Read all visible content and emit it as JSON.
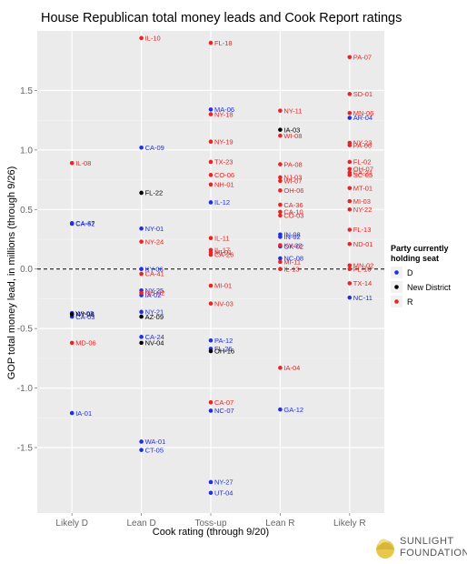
{
  "chart_data": {
    "type": "scatter",
    "title": "House Republican total money leads and Cook Report ratings",
    "xlabel": "Cook rating (through 9/20)",
    "ylabel": "GOP total money lead, in millions (through 9/26)",
    "categories": [
      "Likely D",
      "Lean D",
      "Toss-up",
      "Lean R",
      "Likely R"
    ],
    "ylim": [
      -2.05,
      2.0
    ],
    "yticks": [
      "-1.5",
      "-1.0",
      "-0.5",
      "0.0",
      "0.5",
      "1.0",
      "1.5"
    ],
    "ytick_values": [
      -1.5,
      -1.0,
      -0.5,
      0.0,
      0.5,
      1.0,
      1.5
    ],
    "reference_line": 0.0,
    "legend": {
      "title_line1": "Party currently",
      "title_line2": "holding seat",
      "placement": "right",
      "entries": [
        {
          "label": "D",
          "color": "#1f2fe6"
        },
        {
          "label": "New District",
          "color": "#000000"
        },
        {
          "label": "R",
          "color": "#ee2222"
        }
      ]
    },
    "series": [
      {
        "name": "D",
        "color": "#1f2fe6",
        "points": [
          {
            "cat": "Likely D",
            "y": 0.385,
            "label": "CA-47"
          },
          {
            "cat": "Likely D",
            "y": 0.38,
            "label": "CA-52"
          },
          {
            "cat": "Likely D",
            "y": -0.37,
            "label": "WI-03"
          },
          {
            "cat": "Likely D",
            "y": -0.4,
            "label": "CA-03"
          },
          {
            "cat": "Likely D",
            "y": -1.21,
            "label": "IA-01"
          },
          {
            "cat": "Lean D",
            "y": 1.02,
            "label": "CA-09"
          },
          {
            "cat": "Lean D",
            "y": 0.34,
            "label": "NY-01"
          },
          {
            "cat": "Lean D",
            "y": 0.0,
            "label": "KY-06"
          },
          {
            "cat": "Lean D",
            "y": -0.18,
            "label": "NY-25"
          },
          {
            "cat": "Lean D",
            "y": -0.22,
            "label": "IA-02"
          },
          {
            "cat": "Lean D",
            "y": -0.36,
            "label": "NY-21"
          },
          {
            "cat": "Lean D",
            "y": -0.57,
            "label": "CA-24"
          },
          {
            "cat": "Lean D",
            "y": -1.45,
            "label": "WA-01"
          },
          {
            "cat": "Lean D",
            "y": -1.52,
            "label": "CT-05"
          },
          {
            "cat": "Toss-up",
            "y": 1.34,
            "label": "MA-06"
          },
          {
            "cat": "Toss-up",
            "y": 0.56,
            "label": "IL-12"
          },
          {
            "cat": "Toss-up",
            "y": -0.6,
            "label": "PA-12"
          },
          {
            "cat": "Toss-up",
            "y": -0.67,
            "label": "FL-26"
          },
          {
            "cat": "Toss-up",
            "y": -1.19,
            "label": "NC-07"
          },
          {
            "cat": "Toss-up",
            "y": -1.79,
            "label": "NY-27"
          },
          {
            "cat": "Toss-up",
            "y": -1.88,
            "label": "UT-04"
          },
          {
            "cat": "Lean R",
            "y": 0.29,
            "label": "IN-08"
          },
          {
            "cat": "Lean R",
            "y": 0.27,
            "label": "IN-02"
          },
          {
            "cat": "Lean R",
            "y": 0.19,
            "label": "OK-02"
          },
          {
            "cat": "Lean R",
            "y": 0.09,
            "label": "NC-08"
          },
          {
            "cat": "Lean R",
            "y": -1.18,
            "label": "GA-12"
          },
          {
            "cat": "Likely R",
            "y": 1.27,
            "label": "AR-04"
          },
          {
            "cat": "Likely R",
            "y": -0.24,
            "label": "NC-11"
          }
        ]
      },
      {
        "name": "New District",
        "color": "#000000",
        "points": [
          {
            "cat": "Likely D",
            "y": -0.38,
            "label": "NY-08"
          },
          {
            "cat": "Lean D",
            "y": 0.64,
            "label": "FL-22"
          },
          {
            "cat": "Lean D",
            "y": -0.4,
            "label": "AZ-09"
          },
          {
            "cat": "Lean D",
            "y": -0.62,
            "label": "NV-04"
          },
          {
            "cat": "Toss-up",
            "y": -0.69,
            "label": "OH-16"
          },
          {
            "cat": "Lean R",
            "y": 1.17,
            "label": "IA-03"
          }
        ]
      },
      {
        "name": "R",
        "color": "#ee2222",
        "points": [
          {
            "cat": "Likely D",
            "y": 0.89,
            "label": "IL-08"
          },
          {
            "cat": "Likely D",
            "y": -0.62,
            "label": "MD-06"
          },
          {
            "cat": "Lean D",
            "y": 1.94,
            "label": "IL-10"
          },
          {
            "cat": "Lean D",
            "y": 0.23,
            "label": "NY-24"
          },
          {
            "cat": "Lean D",
            "y": -0.04,
            "label": "CA-41"
          },
          {
            "cat": "Lean D",
            "y": -0.2,
            "label": "NH-02"
          },
          {
            "cat": "Toss-up",
            "y": 1.9,
            "label": "FL-18"
          },
          {
            "cat": "Toss-up",
            "y": 1.3,
            "label": "NY-18"
          },
          {
            "cat": "Toss-up",
            "y": 1.07,
            "label": "NY-19"
          },
          {
            "cat": "Toss-up",
            "y": 0.9,
            "label": "TX-23"
          },
          {
            "cat": "Toss-up",
            "y": 0.79,
            "label": "CO-06"
          },
          {
            "cat": "Toss-up",
            "y": 0.71,
            "label": "NH-01"
          },
          {
            "cat": "Toss-up",
            "y": 0.26,
            "label": "IL-11"
          },
          {
            "cat": "Toss-up",
            "y": 0.16,
            "label": "IL-17"
          },
          {
            "cat": "Toss-up",
            "y": 0.14,
            "label": "MI-01"
          },
          {
            "cat": "Toss-up",
            "y": 0.12,
            "label": "CA-26"
          },
          {
            "cat": "Toss-up",
            "y": -0.14,
            "label": "MI-01"
          },
          {
            "cat": "Toss-up",
            "y": -0.29,
            "label": "NV-03"
          },
          {
            "cat": "Toss-up",
            "y": -1.12,
            "label": "CA-07"
          },
          {
            "cat": "Lean R",
            "y": 1.33,
            "label": "NY-11"
          },
          {
            "cat": "Lean R",
            "y": 1.12,
            "label": "WI-08"
          },
          {
            "cat": "Lean R",
            "y": 0.88,
            "label": "PA-08"
          },
          {
            "cat": "Lean R",
            "y": 0.77,
            "label": "NJ-03"
          },
          {
            "cat": "Lean R",
            "y": 0.74,
            "label": "WI-07"
          },
          {
            "cat": "Lean R",
            "y": 0.66,
            "label": "OH-06"
          },
          {
            "cat": "Lean R",
            "y": 0.54,
            "label": "CA-36"
          },
          {
            "cat": "Lean R",
            "y": 0.48,
            "label": "CA-10"
          },
          {
            "cat": "Lean R",
            "y": 0.45,
            "label": "CO-03"
          },
          {
            "cat": "Lean R",
            "y": 0.2,
            "label": "KY-02"
          },
          {
            "cat": "Lean R",
            "y": 0.06,
            "label": "MI-11"
          },
          {
            "cat": "Lean R",
            "y": 0.0,
            "label": "IL-13"
          },
          {
            "cat": "Lean R",
            "y": -0.83,
            "label": "IA-04"
          },
          {
            "cat": "Likely R",
            "y": 1.78,
            "label": "PA-07"
          },
          {
            "cat": "Likely R",
            "y": 1.47,
            "label": "SD-01"
          },
          {
            "cat": "Likely R",
            "y": 1.31,
            "label": "MN-06"
          },
          {
            "cat": "Likely R",
            "y": 1.06,
            "label": "NY-23"
          },
          {
            "cat": "Likely R",
            "y": 1.04,
            "label": "PA-06"
          },
          {
            "cat": "Likely R",
            "y": 0.9,
            "label": "FL-02"
          },
          {
            "cat": "Likely R",
            "y": 0.84,
            "label": "OH-07"
          },
          {
            "cat": "Likely R",
            "y": 0.81,
            "label": "CA-21"
          },
          {
            "cat": "Likely R",
            "y": 0.79,
            "label": "SC-05"
          },
          {
            "cat": "Likely R",
            "y": 0.68,
            "label": "MT-01"
          },
          {
            "cat": "Likely R",
            "y": 0.57,
            "label": "MI-03"
          },
          {
            "cat": "Likely R",
            "y": 0.5,
            "label": "NY-22"
          },
          {
            "cat": "Likely R",
            "y": 0.33,
            "label": "FL-13"
          },
          {
            "cat": "Likely R",
            "y": 0.21,
            "label": "ND-01"
          },
          {
            "cat": "Likely R",
            "y": 0.03,
            "label": "MN-02"
          },
          {
            "cat": "Likely R",
            "y": 0.0,
            "label": "FL-10"
          },
          {
            "cat": "Likely R",
            "y": -0.12,
            "label": "TX-14"
          }
        ]
      }
    ]
  },
  "branding": {
    "line1": "SUNLIGHT",
    "line2": "FOUNDATION",
    "logo_icon": "sunlight-logo-icon",
    "logo_colors": [
      "#e8c84a",
      "#f2dd85",
      "#d9b63a"
    ]
  }
}
